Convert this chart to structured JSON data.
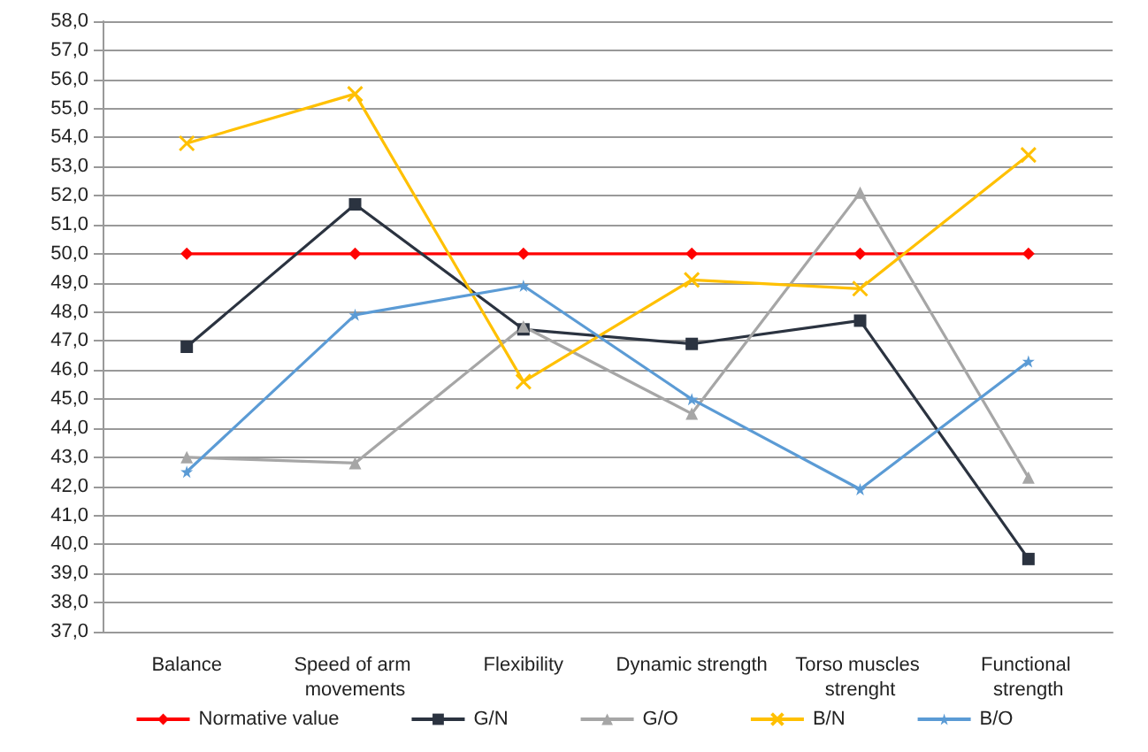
{
  "chart_data": {
    "type": "line",
    "categories": [
      "Balance",
      "Speed of arm movements",
      "Flexibility",
      "Dynamic strength",
      "Torso muscles strenght",
      "Functional strength"
    ],
    "series": [
      {
        "name": "Normative value",
        "color": "#ff0000",
        "marker": "diamond",
        "values": [
          50,
          50,
          50,
          50,
          50,
          50
        ]
      },
      {
        "name": "G/N",
        "color": "#2b3340",
        "marker": "square",
        "values": [
          46.8,
          51.7,
          47.4,
          46.9,
          47.7,
          39.5
        ]
      },
      {
        "name": "G/O",
        "color": "#a6a6a6",
        "marker": "triangle",
        "values": [
          43.0,
          42.8,
          47.5,
          44.5,
          52.1,
          42.3
        ]
      },
      {
        "name": "B/N",
        "color": "#ffc000",
        "marker": "cross",
        "values": [
          53.8,
          55.5,
          45.6,
          49.1,
          48.8,
          53.4
        ]
      },
      {
        "name": "B/O",
        "color": "#5b9bd5",
        "marker": "star",
        "values": [
          42.5,
          47.9,
          48.9,
          45.0,
          41.9,
          46.3
        ]
      }
    ],
    "ylim": [
      37,
      58
    ],
    "yticks": [
      {
        "value": 37,
        "label": "37,0"
      },
      {
        "value": 38,
        "label": "38,0"
      },
      {
        "value": 39,
        "label": "39,0"
      },
      {
        "value": 40,
        "label": "40,0"
      },
      {
        "value": 41,
        "label": "41,0"
      },
      {
        "value": 42,
        "label": "42,0"
      },
      {
        "value": 43,
        "label": "43,0"
      },
      {
        "value": 44,
        "label": "44,0"
      },
      {
        "value": 45,
        "label": "45,0"
      },
      {
        "value": 46,
        "label": "46,0"
      },
      {
        "value": 47,
        "label": "47,0"
      },
      {
        "value": 48,
        "label": "48,0"
      },
      {
        "value": 49,
        "label": "49,0"
      },
      {
        "value": 50,
        "label": "50,0"
      },
      {
        "value": 51,
        "label": "51,0"
      },
      {
        "value": 52,
        "label": "52,0"
      },
      {
        "value": 53,
        "label": "53,0"
      },
      {
        "value": 54,
        "label": "54,0"
      },
      {
        "value": 55,
        "label": "55,0"
      },
      {
        "value": 56,
        "label": "56,0"
      },
      {
        "value": 57,
        "label": "57,0"
      },
      {
        "value": 58,
        "label": "58,0"
      }
    ],
    "grid": "y",
    "legend": "bottom",
    "line_style": "solid"
  }
}
